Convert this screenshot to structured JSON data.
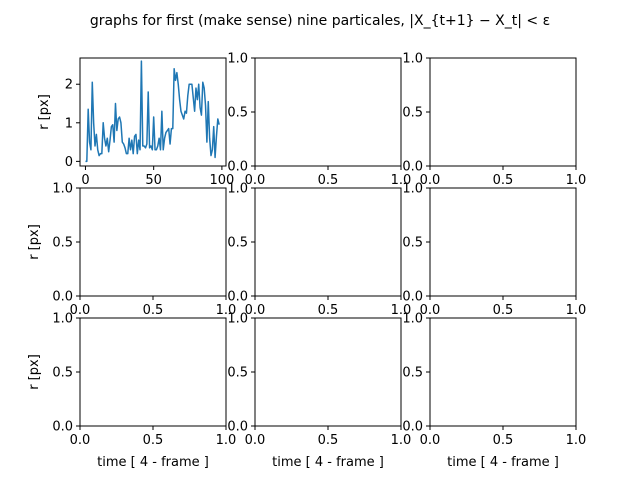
{
  "figure": {
    "title": "graphs for first (make sense) nine particales, |X_{t+1} − X_t| < ε"
  },
  "chart_data": [
    {
      "type": "line",
      "ylabel": "r [px]",
      "xlabel": "",
      "xlim": [
        -4,
        103
      ],
      "ylim": [
        -0.12,
        2.68
      ],
      "xticks": [
        0,
        50,
        100
      ],
      "xtick_labels": [
        "0",
        "50",
        "100"
      ],
      "yticks": [
        0,
        1,
        2
      ],
      "ytick_labels": [
        "0",
        "1",
        "2"
      ],
      "color": "#1f77b4",
      "series": [
        {
          "x": [
            0,
            1,
            2,
            3,
            4,
            5,
            6,
            7,
            8,
            9,
            10,
            11,
            12,
            13,
            14,
            15,
            16,
            17,
            18,
            19,
            20,
            21,
            22,
            23,
            24,
            25,
            26,
            27,
            28,
            29,
            30,
            31,
            32,
            33,
            34,
            35,
            36,
            37,
            38,
            39,
            40,
            41,
            42,
            43,
            44,
            45,
            46,
            47,
            48,
            49,
            50,
            51,
            52,
            53,
            54,
            55,
            56,
            57,
            58,
            59,
            60,
            61,
            62,
            63,
            64,
            65,
            66,
            67,
            68,
            69,
            70,
            71,
            72,
            73,
            74,
            75,
            76,
            77,
            78,
            79,
            80,
            81,
            82,
            83,
            84,
            85,
            86,
            87,
            88,
            89,
            90,
            91,
            92,
            93,
            94,
            95,
            96,
            97,
            98
          ],
          "y": [
            0.0,
            0.0,
            1.35,
            0.5,
            0.3,
            2.05,
            1.0,
            0.4,
            0.7,
            0.3,
            0.15,
            0.2,
            0.2,
            1.0,
            0.6,
            0.4,
            0.6,
            0.25,
            0.55,
            0.9,
            0.95,
            0.5,
            1.5,
            0.8,
            1.1,
            1.15,
            1.0,
            0.5,
            0.45,
            0.35,
            0.2,
            0.2,
            0.6,
            0.3,
            0.55,
            0.2,
            0.65,
            0.7,
            0.2,
            0.55,
            0.3,
            2.6,
            0.4,
            0.4,
            0.35,
            0.45,
            1.8,
            0.35,
            0.4,
            0.3,
            1.15,
            0.3,
            0.3,
            0.4,
            0.6,
            0.3,
            1.3,
            0.3,
            0.6,
            0.75,
            0.8,
            0.85,
            0.45,
            0.85,
            0.85,
            2.4,
            2.1,
            2.3,
            2.0,
            1.6,
            1.3,
            1.2,
            1.1,
            1.3,
            1.25,
            1.7,
            2.0,
            2.0,
            2.0,
            1.65,
            1.3,
            1.9,
            1.6,
            2.0,
            1.4,
            1.2,
            2.05,
            1.9,
            1.45,
            0.5,
            1.55,
            0.6,
            0.15,
            0.3,
            0.9,
            0.1,
            0.65,
            1.1,
            0.95
          ]
        }
      ]
    },
    {
      "type": "line",
      "ylabel": "",
      "xlabel": "",
      "xlim": [
        0,
        1
      ],
      "ylim": [
        0,
        1
      ],
      "xtick_labels": [
        "0.0",
        "0.5",
        "1.0"
      ],
      "ytick_labels": [
        "0.0",
        "0.5",
        "1.0"
      ],
      "series": []
    },
    {
      "type": "line",
      "ylabel": "",
      "xlabel": "",
      "xlim": [
        0,
        1
      ],
      "ylim": [
        0,
        1
      ],
      "xtick_labels": [
        "0.0",
        "0.5",
        "1.0"
      ],
      "ytick_labels": [
        "0.0",
        "0.5",
        "1.0"
      ],
      "series": []
    },
    {
      "type": "line",
      "ylabel": "r [px]",
      "xlabel": "",
      "xlim": [
        0,
        1
      ],
      "ylim": [
        0,
        1
      ],
      "xtick_labels": [
        "0.0",
        "0.5",
        "1.0"
      ],
      "ytick_labels": [
        "0.0",
        "0.5",
        "1.0"
      ],
      "series": []
    },
    {
      "type": "line",
      "ylabel": "",
      "xlabel": "",
      "xlim": [
        0,
        1
      ],
      "ylim": [
        0,
        1
      ],
      "xtick_labels": [
        "0.0",
        "0.5",
        "1.0"
      ],
      "ytick_labels": [
        "0.0",
        "0.5",
        "1.0"
      ],
      "series": []
    },
    {
      "type": "line",
      "ylabel": "",
      "xlabel": "",
      "xlim": [
        0,
        1
      ],
      "ylim": [
        0,
        1
      ],
      "xtick_labels": [
        "0.0",
        "0.5",
        "1.0"
      ],
      "ytick_labels": [
        "0.0",
        "0.5",
        "1.0"
      ],
      "series": []
    },
    {
      "type": "line",
      "ylabel": "r [px]",
      "xlabel": "time [ 4 - frame ]",
      "xlim": [
        0,
        1
      ],
      "ylim": [
        0,
        1
      ],
      "xtick_labels": [
        "0.0",
        "0.5",
        "1.0"
      ],
      "ytick_labels": [
        "0.0",
        "0.5",
        "1.0"
      ],
      "series": []
    },
    {
      "type": "line",
      "ylabel": "",
      "xlabel": "time [ 4 - frame ]",
      "xlim": [
        0,
        1
      ],
      "ylim": [
        0,
        1
      ],
      "xtick_labels": [
        "0.0",
        "0.5",
        "1.0"
      ],
      "ytick_labels": [
        "0.0",
        "0.5",
        "1.0"
      ],
      "series": []
    },
    {
      "type": "line",
      "ylabel": "",
      "xlabel": "time [ 4 - frame ]",
      "xlim": [
        0,
        1
      ],
      "ylim": [
        0,
        1
      ],
      "xtick_labels": [
        "0.0",
        "0.5",
        "1.0"
      ],
      "ytick_labels": [
        "0.0",
        "0.5",
        "1.0"
      ],
      "series": []
    }
  ]
}
